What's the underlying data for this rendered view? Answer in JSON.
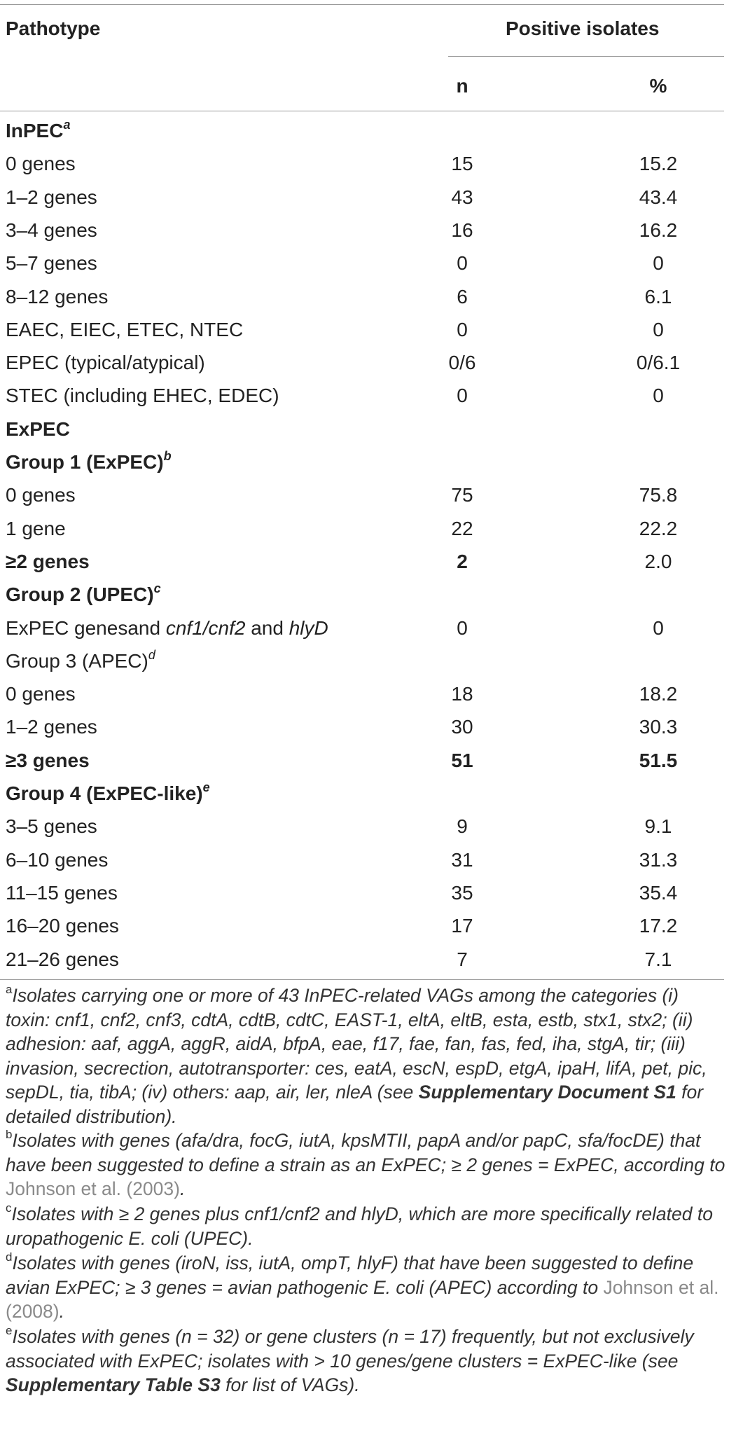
{
  "header": {
    "col_pathotype": "Pathotype",
    "col_positive": "Positive isolates",
    "col_n": "n",
    "col_pct": "%"
  },
  "rows": [
    {
      "label": "InPEC",
      "sup": "a",
      "bold": true,
      "n": "",
      "pct": ""
    },
    {
      "label": "0 genes",
      "n": "15",
      "pct": "15.2"
    },
    {
      "label": "1–2 genes",
      "n": "43",
      "pct": "43.4"
    },
    {
      "label": "3–4 genes",
      "n": "16",
      "pct": "16.2"
    },
    {
      "label": "5–7 genes",
      "n": "0",
      "pct": "0"
    },
    {
      "label": "8–12 genes",
      "n": "6",
      "pct": "6.1"
    },
    {
      "label": "EAEC, EIEC, ETEC, NTEC",
      "n": "0",
      "pct": "0"
    },
    {
      "label": "EPEC (typical/atypical)",
      "n": "0/6",
      "pct": "0/6.1"
    },
    {
      "label": "STEC (including EHEC, EDEC)",
      "n": "0",
      "pct": "0"
    },
    {
      "label": "ExPEC",
      "bold": true,
      "n": "",
      "pct": ""
    },
    {
      "label": "Group 1 (ExPEC)",
      "sup": "b",
      "bold": true,
      "n": "",
      "pct": ""
    },
    {
      "label": "0 genes",
      "n": "75",
      "pct": "75.8"
    },
    {
      "label": "1 gene",
      "n": "22",
      "pct": "22.2"
    },
    {
      "label": "≥2 genes",
      "bold": true,
      "underline_first": true,
      "n": "2",
      "n_bold": true,
      "pct": "2.0"
    },
    {
      "label": "Group 2 (UPEC)",
      "sup": "c",
      "bold": true,
      "n": "",
      "pct": ""
    },
    {
      "label_html_parts": [
        "ExPEC genesand ",
        "cnf1/cnf2",
        " and ",
        "hlyD"
      ],
      "label": "ExPEC genesand cnf1/cnf2 and hlyD",
      "n": "0",
      "pct": "0"
    },
    {
      "label": "Group 3 (APEC)",
      "sup": "d",
      "n": "",
      "pct": ""
    },
    {
      "label": "0 genes",
      "n": "18",
      "pct": "18.2"
    },
    {
      "label": "1–2 genes",
      "n": "30",
      "pct": "30.3"
    },
    {
      "label": "≥3 genes",
      "bold": true,
      "underline_first": true,
      "n": "51",
      "n_bold": true,
      "pct": "51.5",
      "pct_bold": true
    },
    {
      "label": "Group 4 (ExPEC-like)",
      "sup": "e",
      "bold": true,
      "n": "",
      "pct": ""
    },
    {
      "label": "3–5 genes",
      "n": "9",
      "pct": "9.1"
    },
    {
      "label": "6–10 genes",
      "n": "31",
      "pct": "31.3"
    },
    {
      "label": "11–15 genes",
      "n": "35",
      "pct": "35.4"
    },
    {
      "label": "16–20 genes",
      "n": "17",
      "pct": "17.2"
    },
    {
      "label": "21–26 genes",
      "n": "7",
      "pct": "7.1"
    }
  ],
  "footnotes": {
    "a": {
      "sup": "a",
      "text1": "Isolates carrying one or more of 43 InPEC-related VAGs among the categories (i) toxin: cnf1, cnf2, cnf3, cdtA, cdtB, cdtC, EAST-1, eltA, eltB, esta, estb, stx1, stx2; (ii) adhesion: aaf, aggA, aggR, aidA, bfpA, eae, f17, fae, fan, fas, fed, iha, stgA, tir; (iii) invasion, secrection, autotransporter: ces, eatA, escN, espD, etgA, ipaH, lifA, pet, pic, sepDL, tia, tibA; (iv) others: aap, air, ler, nleA (see ",
      "bold": "Supplementary Document S1",
      "text2": " for detailed distribution)."
    },
    "b": {
      "sup": "b",
      "text1": "Isolates with genes (afa/dra, focG, iutA, kpsMTII, papA and/or papC, sfa/focDE) that have been suggested to define a strain as an ExPEC; ≥ 2 genes = ExPEC, according to ",
      "ref": "Johnson et al. (2003)",
      "text2": "."
    },
    "c": {
      "sup": "c",
      "text1": "Isolates with ≥ 2 genes plus cnf1/cnf2 and hlyD, which are more specifically related to uropathogenic E. coli (UPEC)."
    },
    "d": {
      "sup": "d",
      "text1": "Isolates with genes (iroN, iss, iutA, ompT, hlyF) that have been suggested to define avian ExPEC; ≥ 3 genes = avian pathogenic E. coli (APEC) according to ",
      "ref": "Johnson et al. (2008)",
      "text2": "."
    },
    "e": {
      "sup": "e",
      "text1": "Isolates with genes (n = 32) or gene clusters (n = 17) frequently, but not exclusively associated with ExPEC; isolates with > 10 genes/gene clusters = ExPEC-like (see ",
      "bold": "Supplementary Table S3",
      "text2": " for list of VAGs)."
    }
  }
}
